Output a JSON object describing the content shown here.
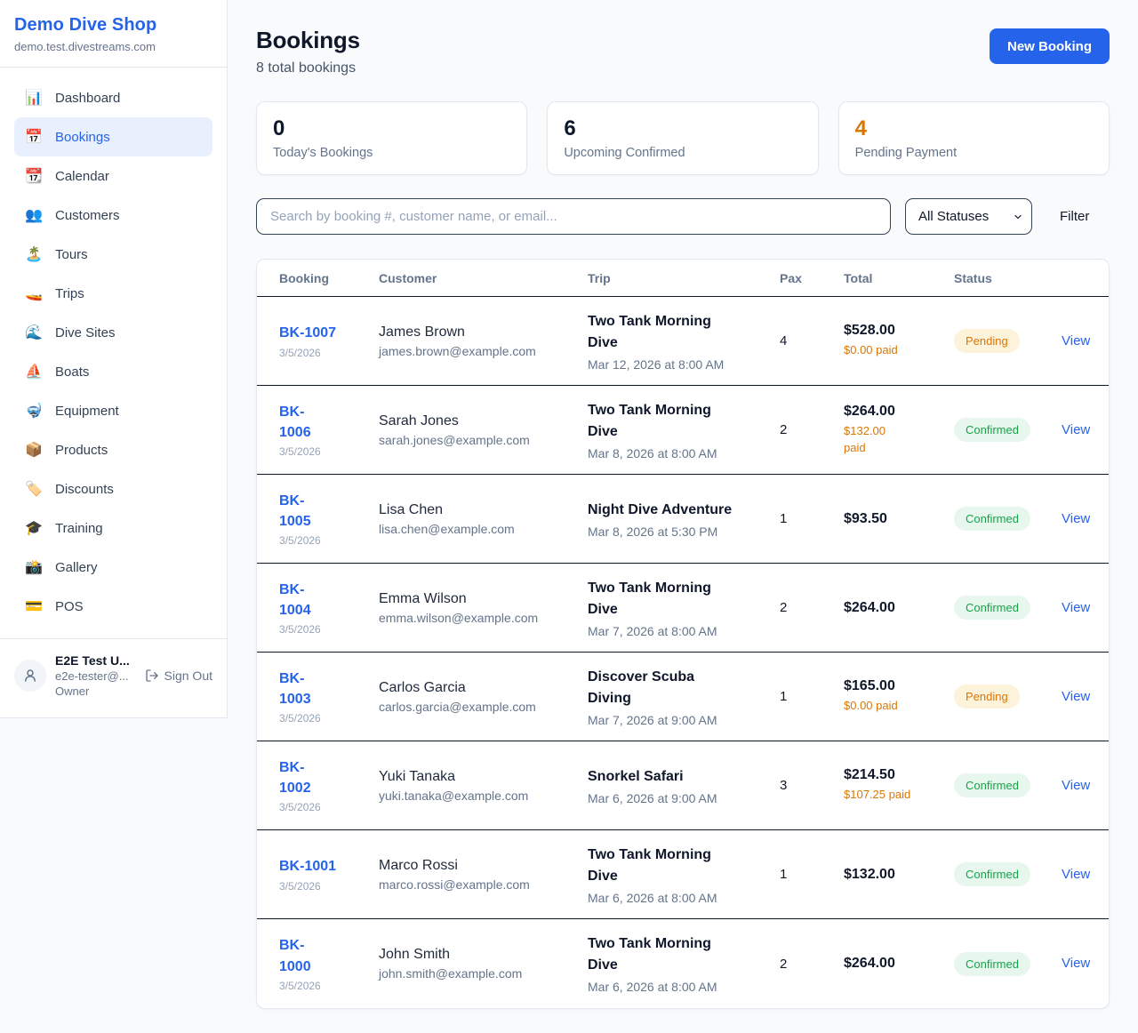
{
  "sidebar": {
    "shop_name": "Demo Dive Shop",
    "domain": "demo.test.divestreams.com",
    "items": [
      {
        "icon_name": "bar-chart-icon",
        "icon": "📊",
        "label": "Dashboard",
        "active": false
      },
      {
        "icon_name": "calendar-date-icon",
        "icon": "📅",
        "label": "Bookings",
        "active": true
      },
      {
        "icon_name": "calendar-icon",
        "icon": "📆",
        "label": "Calendar",
        "active": false
      },
      {
        "icon_name": "people-icon",
        "icon": "👥",
        "label": "Customers",
        "active": false
      },
      {
        "icon_name": "island-icon",
        "icon": "🏝️",
        "label": "Tours",
        "active": false
      },
      {
        "icon_name": "speedboat-icon",
        "icon": "🚤",
        "label": "Trips",
        "active": false
      },
      {
        "icon_name": "wave-icon",
        "icon": "🌊",
        "label": "Dive Sites",
        "active": false
      },
      {
        "icon_name": "sailboat-icon",
        "icon": "⛵",
        "label": "Boats",
        "active": false
      },
      {
        "icon_name": "diving-mask-icon",
        "icon": "🤿",
        "label": "Equipment",
        "active": false
      },
      {
        "icon_name": "package-icon",
        "icon": "📦",
        "label": "Products",
        "active": false
      },
      {
        "icon_name": "label-tag-icon",
        "icon": "🏷️",
        "label": "Discounts",
        "active": false
      },
      {
        "icon_name": "graduation-cap-icon",
        "icon": "🎓",
        "label": "Training",
        "active": false
      },
      {
        "icon_name": "camera-icon",
        "icon": "📸",
        "label": "Gallery",
        "active": false
      },
      {
        "icon_name": "credit-card-icon",
        "icon": "💳",
        "label": "POS",
        "active": false
      }
    ],
    "user": {
      "name": "E2E Test U...",
      "email": "e2e-tester@...",
      "role": "Owner",
      "sign_out_label": "Sign Out"
    }
  },
  "header": {
    "title": "Bookings",
    "subtitle": "8 total bookings",
    "new_booking_label": "New Booking"
  },
  "stats": [
    {
      "value": "0",
      "label": "Today's Bookings",
      "value_color": "#0f172a"
    },
    {
      "value": "6",
      "label": "Upcoming Confirmed",
      "value_color": "#0f172a"
    },
    {
      "value": "4",
      "label": "Pending Payment",
      "value_color": "#d97706"
    }
  ],
  "filters": {
    "search_placeholder": "Search by booking #, customer name, or email...",
    "status_selected": "All Statuses",
    "filter_label": "Filter"
  },
  "table": {
    "columns": [
      "Booking",
      "Customer",
      "Trip",
      "Pax",
      "Total",
      "Status"
    ],
    "view_label": "View",
    "rows": [
      {
        "booking": "BK-1007",
        "booking_lines": [
          "BK-1007"
        ],
        "date": "3/5/2026",
        "customer": "James Brown",
        "email": "james.brown@example.com",
        "trip": "Two Tank Morning Dive",
        "trip_lines": [
          "Two Tank Morning",
          "Dive"
        ],
        "trip_when": "Mar 12, 2026 at 8:00 AM",
        "pax": "4",
        "total": "$528.00",
        "paid_lines": [
          "$0.00 paid"
        ],
        "status": "Pending"
      },
      {
        "booking": "BK-1006",
        "booking_lines": [
          "BK-",
          "1006"
        ],
        "date": "3/5/2026",
        "customer": "Sarah Jones",
        "email": "sarah.jones@example.com",
        "trip": "Two Tank Morning Dive",
        "trip_lines": [
          "Two Tank Morning",
          "Dive"
        ],
        "trip_when": "Mar 8, 2026 at 8:00 AM",
        "pax": "2",
        "total": "$264.00",
        "paid_lines": [
          "$132.00",
          "paid"
        ],
        "status": "Confirmed"
      },
      {
        "booking": "BK-1005",
        "booking_lines": [
          "BK-",
          "1005"
        ],
        "date": "3/5/2026",
        "customer": "Lisa Chen",
        "email": "lisa.chen@example.com",
        "trip": "Night Dive Adventure",
        "trip_lines": [
          "Night Dive Adventure"
        ],
        "trip_when": "Mar 8, 2026 at 5:30 PM",
        "pax": "1",
        "total": "$93.50",
        "paid_lines": [],
        "status": "Confirmed"
      },
      {
        "booking": "BK-1004",
        "booking_lines": [
          "BK-",
          "1004"
        ],
        "date": "3/5/2026",
        "customer": "Emma Wilson",
        "email": "emma.wilson@example.com",
        "trip": "Two Tank Morning Dive",
        "trip_lines": [
          "Two Tank Morning",
          "Dive"
        ],
        "trip_when": "Mar 7, 2026 at 8:00 AM",
        "pax": "2",
        "total": "$264.00",
        "paid_lines": [],
        "status": "Confirmed"
      },
      {
        "booking": "BK-1003",
        "booking_lines": [
          "BK-",
          "1003"
        ],
        "date": "3/5/2026",
        "customer": "Carlos Garcia",
        "email": "carlos.garcia@example.com",
        "trip": "Discover Scuba Diving",
        "trip_lines": [
          "Discover Scuba",
          "Diving"
        ],
        "trip_when": "Mar 7, 2026 at 9:00 AM",
        "pax": "1",
        "total": "$165.00",
        "paid_lines": [
          "$0.00 paid"
        ],
        "status": "Pending"
      },
      {
        "booking": "BK-1002",
        "booking_lines": [
          "BK-",
          "1002"
        ],
        "date": "3/5/2026",
        "customer": "Yuki Tanaka",
        "email": "yuki.tanaka@example.com",
        "trip": "Snorkel Safari",
        "trip_lines": [
          "Snorkel Safari"
        ],
        "trip_when": "Mar 6, 2026 at 9:00 AM",
        "pax": "3",
        "total": "$214.50",
        "paid_lines": [
          "$107.25 paid"
        ],
        "status": "Confirmed"
      },
      {
        "booking": "BK-1001",
        "booking_lines": [
          "BK-1001"
        ],
        "date": "3/5/2026",
        "customer": "Marco Rossi",
        "email": "marco.rossi@example.com",
        "trip": "Two Tank Morning Dive",
        "trip_lines": [
          "Two Tank Morning",
          "Dive"
        ],
        "trip_when": "Mar 6, 2026 at 8:00 AM",
        "pax": "1",
        "total": "$132.00",
        "paid_lines": [],
        "status": "Confirmed"
      },
      {
        "booking": "BK-1000",
        "booking_lines": [
          "BK-",
          "1000"
        ],
        "date": "3/5/2026",
        "customer": "John Smith",
        "email": "john.smith@example.com",
        "trip": "Two Tank Morning Dive",
        "trip_lines": [
          "Two Tank Morning",
          "Dive"
        ],
        "trip_when": "Mar 6, 2026 at 8:00 AM",
        "pax": "2",
        "total": "$264.00",
        "paid_lines": [],
        "status": "Confirmed"
      }
    ]
  },
  "colors": {
    "accent": "#2563eb",
    "link": "#2563eb",
    "pending_text": "#d97706",
    "pending_bg": "#fdf3da",
    "confirmed_text": "#16a34a",
    "confirmed_bg": "#e8f7ee",
    "page_bg": "#f8fafc",
    "border": "#e2e8f0",
    "row_divider": "#0f172a"
  }
}
